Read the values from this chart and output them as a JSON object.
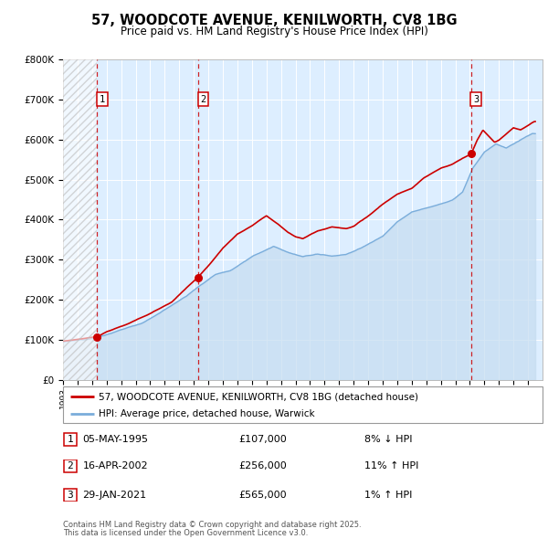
{
  "title": "57, WOODCOTE AVENUE, KENILWORTH, CV8 1BG",
  "subtitle": "Price paid vs. HM Land Registry's House Price Index (HPI)",
  "transactions": [
    {
      "num": 1,
      "date": "1995-05-05",
      "price": 107000,
      "pct": "8%",
      "direction": "↓",
      "label": "8% ↓ HPI"
    },
    {
      "num": 2,
      "date": "2002-04-16",
      "price": 256000,
      "pct": "11%",
      "direction": "↑",
      "label": "11% ↑ HPI"
    },
    {
      "num": 3,
      "date": "2021-01-29",
      "price": 565000,
      "pct": "1%",
      "direction": "↑",
      "label": "1% ↑ HPI"
    }
  ],
  "legend_line1": "57, WOODCOTE AVENUE, KENILWORTH, CV8 1BG (detached house)",
  "legend_line2": "HPI: Average price, detached house, Warwick",
  "footer1": "Contains HM Land Registry data © Crown copyright and database right 2025.",
  "footer2": "This data is licensed under the Open Government Licence v3.0.",
  "ylim": [
    0,
    800000
  ],
  "yticks": [
    0,
    100000,
    200000,
    300000,
    400000,
    500000,
    600000,
    700000,
    800000
  ],
  "xlim_start": 1993,
  "xlim_end": 2026,
  "red_color": "#cc0000",
  "blue_color": "#7aaddb",
  "blue_fill": "#c5dcf0",
  "bg_color": "#ddeeff",
  "grid_color": "#ffffff",
  "hatch_color": "#bbbbbb",
  "table_row_labels": [
    "1",
    "2",
    "3"
  ],
  "table_dates": [
    "05-MAY-1995",
    "16-APR-2002",
    "29-JAN-2021"
  ],
  "table_prices": [
    "£107,000",
    "£256,000",
    "£565,000"
  ],
  "table_pct": [
    "8% ↓ HPI",
    "11% ↑ HPI",
    "1% ↑ HPI"
  ]
}
